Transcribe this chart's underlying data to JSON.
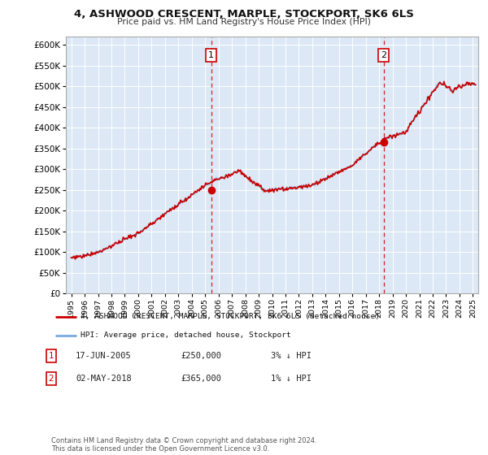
{
  "title": "4, ASHWOOD CRESCENT, MARPLE, STOCKPORT, SK6 6LS",
  "subtitle": "Price paid vs. HM Land Registry's House Price Index (HPI)",
  "legend_line1": "4, ASHWOOD CRESCENT, MARPLE, STOCKPORT, SK6 6LS (detached house)",
  "legend_line2": "HPI: Average price, detached house, Stockport",
  "sale1_label": "1",
  "sale1_date": "17-JUN-2005",
  "sale1_price": "£250,000",
  "sale1_hpi": "3% ↓ HPI",
  "sale1_year": 2005.46,
  "sale1_value": 250000,
  "sale2_label": "2",
  "sale2_date": "02-MAY-2018",
  "sale2_price": "£365,000",
  "sale2_hpi": "1% ↓ HPI",
  "sale2_year": 2018.33,
  "sale2_value": 365000,
  "hpi_color": "#7aaadd",
  "price_color": "#cc0000",
  "vline_color": "#cc0000",
  "background_color": "#ffffff",
  "plot_bg_color": "#dce8f5",
  "grid_color": "#ffffff",
  "footnote": "Contains HM Land Registry data © Crown copyright and database right 2024.\nThis data is licensed under the Open Government Licence v3.0.",
  "ylim": [
    0,
    620000
  ],
  "yticks": [
    0,
    50000,
    100000,
    150000,
    200000,
    250000,
    300000,
    350000,
    400000,
    450000,
    500000,
    550000,
    600000
  ],
  "start_year": 1995,
  "end_year": 2025
}
